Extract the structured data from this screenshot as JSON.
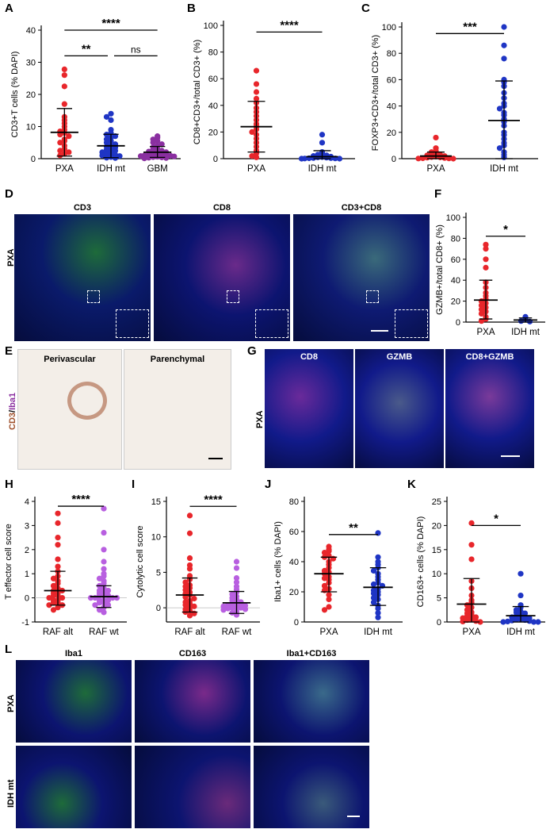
{
  "panel_letters": [
    "A",
    "B",
    "C",
    "D",
    "E",
    "F",
    "G",
    "H",
    "I",
    "J",
    "K",
    "L"
  ],
  "colors": {
    "red": "#e8262b",
    "blue": "#1f35c4",
    "purple": "#8a2fa0",
    "violet": "#b85fe0"
  },
  "micro": {
    "D": {
      "row_label": "PXA",
      "labels": [
        "CD3",
        "CD8",
        "CD3+CD8"
      ]
    },
    "E": {
      "labels": [
        "Perivascular",
        "Parenchymal"
      ],
      "side_label_a": "CD3",
      "side_label_sep": "/",
      "side_label_b": "Iba1"
    },
    "G": {
      "row_label": "PXA",
      "labels": [
        "CD8",
        "GZMB",
        "CD8+GZMB"
      ]
    },
    "L": {
      "row_labels": [
        "PXA",
        "IDH mt"
      ],
      "labels": [
        "Iba1",
        "CD163",
        "Iba1+CD163"
      ]
    }
  },
  "chart_data": [
    {
      "id": "A",
      "type": "scatter",
      "ylabel": "CD3+T cells (% DAPI)",
      "ylim": [
        0,
        40
      ],
      "yticks": [
        0,
        10,
        20,
        30,
        40
      ],
      "categories": [
        "PXA",
        "IDH mt",
        "GBM"
      ],
      "series": [
        {
          "category": "PXA",
          "color": "#e8262b",
          "mean": 8.2,
          "sd_low": 0.8,
          "sd_high": 15.6,
          "values": [
            27.8,
            26,
            22.5,
            17,
            13,
            12,
            11,
            10,
            9,
            8.5,
            8,
            7.5,
            7,
            6,
            5.5,
            5,
            4,
            3,
            2.5,
            2,
            1.5,
            1
          ]
        },
        {
          "category": "IDH mt",
          "color": "#1f35c4",
          "mean": 4,
          "sd_low": 0.3,
          "sd_high": 7.6,
          "values": [
            14,
            13,
            12,
            9,
            8,
            7.5,
            7,
            6.5,
            6,
            5.5,
            5,
            4.5,
            4,
            3.8,
            3.5,
            3,
            2.8,
            2.5,
            2,
            1.8,
            1.5,
            1.2,
            1,
            0.8,
            0.5,
            0.3,
            0.2
          ]
        },
        {
          "category": "GBM",
          "color": "#8a2fa0",
          "mean": 2,
          "sd_low": 0.4,
          "sd_high": 3.8,
          "values": [
            7,
            6.5,
            6,
            5.5,
            5,
            4.5,
            4,
            3.5,
            3,
            2.8,
            2.5,
            2.2,
            2,
            1.8,
            1.6,
            1.5,
            1.3,
            1.2,
            1,
            0.9,
            0.8,
            0.7,
            0.6,
            0.5,
            0.4,
            0.3,
            0.2,
            0.1
          ]
        }
      ],
      "significance": [
        {
          "from": 0,
          "to": 2,
          "label": "****",
          "y": 40
        },
        {
          "from": 0,
          "to": 1,
          "label": "**",
          "y": 32
        },
        {
          "from": 1,
          "to": 2,
          "label": "ns",
          "y": 32
        }
      ]
    },
    {
      "id": "B",
      "type": "scatter",
      "ylabel": "CD8+CD3+/total CD3+ (%)",
      "ylim": [
        0,
        100
      ],
      "yticks": [
        0,
        20,
        40,
        60,
        80,
        100
      ],
      "categories": [
        "PXA",
        "IDH mt"
      ],
      "series": [
        {
          "category": "PXA",
          "color": "#e8262b",
          "mean": 24,
          "sd_low": 5,
          "sd_high": 43,
          "values": [
            66,
            56,
            50,
            45,
            42,
            38,
            35,
            32,
            29,
            26,
            24,
            22,
            20,
            18,
            15,
            12,
            9,
            6,
            4,
            2,
            1
          ]
        },
        {
          "category": "IDH mt",
          "color": "#1f35c4",
          "mean": 1.5,
          "sd_low": 0,
          "sd_high": 6,
          "values": [
            18,
            12,
            5,
            4,
            3,
            2.5,
            2,
            1.5,
            1.2,
            1,
            0.8,
            0.5,
            0.4,
            0.3,
            0.2,
            0.1,
            0,
            0
          ]
        }
      ],
      "significance": [
        {
          "from": 0,
          "to": 1,
          "label": "****",
          "y": 95
        }
      ]
    },
    {
      "id": "C",
      "type": "scatter",
      "ylabel": "FOXP3+CD3+/total CD3+ (%)",
      "ylim": [
        0,
        100
      ],
      "yticks": [
        0,
        20,
        40,
        60,
        80,
        100
      ],
      "categories": [
        "PXA",
        "IDH mt"
      ],
      "series": [
        {
          "category": "PXA",
          "color": "#e8262b",
          "mean": 2,
          "sd_low": 0,
          "sd_high": 5,
          "values": [
            16,
            8,
            6,
            5,
            4,
            3.5,
            3,
            2.5,
            2,
            1.5,
            1.2,
            1,
            0.8,
            0.5,
            0.3,
            0.2,
            0.1,
            0
          ]
        },
        {
          "category": "IDH mt",
          "color": "#1f35c4",
          "mean": 29,
          "sd_low": 0,
          "sd_high": 59,
          "values": [
            100,
            86,
            76,
            60,
            58,
            55,
            50,
            46,
            42,
            40,
            38,
            35,
            33,
            30,
            28,
            25,
            20,
            18,
            15,
            12,
            10,
            8,
            5,
            3,
            1
          ]
        }
      ],
      "significance": [
        {
          "from": 0,
          "to": 1,
          "label": "***",
          "y": 95
        }
      ]
    },
    {
      "id": "F",
      "type": "scatter",
      "ylabel": "GZMB+/total CD8+ (%)",
      "ylim": [
        0,
        100
      ],
      "yticks": [
        0,
        20,
        40,
        60,
        80,
        100
      ],
      "categories": [
        "PXA",
        "IDH mt"
      ],
      "series": [
        {
          "category": "PXA",
          "color": "#e8262b",
          "mean": 21,
          "sd_low": 3,
          "sd_high": 40,
          "values": [
            74,
            70,
            60,
            52,
            38,
            33,
            28,
            25,
            22,
            20,
            18,
            16,
            14,
            12,
            10,
            8,
            5,
            3,
            1
          ]
        },
        {
          "category": "IDH mt",
          "color": "#1f35c4",
          "mean": 2,
          "sd_low": 0,
          "sd_high": 4,
          "values": [
            5,
            3,
            1,
            0.5
          ]
        }
      ],
      "significance": [
        {
          "from": 0,
          "to": 1,
          "label": "*",
          "y": 82
        }
      ]
    },
    {
      "id": "H",
      "type": "scatter",
      "ylabel": "T effector cell score",
      "ylim": [
        -1,
        4
      ],
      "yticks": [
        -1,
        0,
        1,
        2,
        3,
        4
      ],
      "categories": [
        "RAF alt",
        "RAF wt"
      ],
      "series": [
        {
          "category": "RAF alt",
          "color": "#e8262b",
          "mean": 0.3,
          "sd_low": -0.3,
          "sd_high": 1.1,
          "values": [
            3.5,
            3.1,
            2.5,
            2.2,
            1.6,
            1.3,
            1.1,
            0.9,
            0.8,
            0.7,
            0.6,
            0.5,
            0.4,
            0.3,
            0.3,
            0.2,
            0.2,
            0.1,
            0.1,
            0,
            0,
            -0.1,
            -0.1,
            -0.2,
            -0.2,
            -0.3,
            -0.3,
            -0.4,
            -0.5
          ]
        },
        {
          "category": "RAF wt",
          "color": "#b85fe0",
          "mean": 0.05,
          "sd_low": -0.4,
          "sd_high": 0.5,
          "values": [
            3.7,
            2.7,
            2.0,
            1.5,
            1.2,
            1.0,
            0.9,
            0.8,
            0.7,
            0.6,
            0.5,
            0.4,
            0.3,
            0.3,
            0.2,
            0.2,
            0.1,
            0.1,
            0.1,
            0,
            0,
            0,
            0,
            -0.1,
            -0.1,
            -0.1,
            -0.2,
            -0.2,
            -0.3,
            -0.3,
            -0.4,
            -0.5,
            -0.6
          ]
        }
      ],
      "significance": [
        {
          "from": 0,
          "to": 1,
          "label": "****",
          "y": 3.8
        }
      ]
    },
    {
      "id": "I",
      "type": "scatter",
      "ylabel": "Cytolytic cell score",
      "ylim": [
        -2,
        15
      ],
      "yticks": [
        0,
        5,
        10,
        15
      ],
      "categories": [
        "RAF alt",
        "RAF wt"
      ],
      "series": [
        {
          "category": "RAF alt",
          "color": "#e8262b",
          "mean": 1.8,
          "sd_low": -0.6,
          "sd_high": 4.2,
          "values": [
            13,
            10.5,
            7,
            6,
            5.5,
            4.5,
            4,
            3.6,
            3.2,
            3,
            2.8,
            2.5,
            2.2,
            2,
            1.8,
            1.5,
            1.3,
            1,
            0.8,
            0.6,
            0.4,
            0.2,
            0,
            -0.2,
            -0.4,
            -0.6,
            -0.8,
            -1.1
          ]
        },
        {
          "category": "RAF wt",
          "color": "#b85fe0",
          "mean": 0.7,
          "sd_low": -0.8,
          "sd_high": 2.3,
          "values": [
            6.5,
            5.6,
            4.2,
            3.6,
            3,
            2.6,
            2.2,
            1.9,
            1.6,
            1.4,
            1.2,
            1,
            0.8,
            0.7,
            0.6,
            0.5,
            0.4,
            0.3,
            0.2,
            0.1,
            0,
            0,
            -0.1,
            -0.2,
            -0.3,
            -0.5,
            -0.7,
            -1
          ]
        }
      ],
      "significance": [
        {
          "from": 0,
          "to": 1,
          "label": "****",
          "y": 14.3
        }
      ]
    },
    {
      "id": "J",
      "type": "scatter",
      "ylabel": "Iba1+ cells (% DAPI)",
      "ylim": [
        0,
        80
      ],
      "yticks": [
        0,
        20,
        40,
        60,
        80
      ],
      "categories": [
        "PXA",
        "IDH mt"
      ],
      "series": [
        {
          "category": "PXA",
          "color": "#e8262b",
          "mean": 32,
          "sd_low": 20,
          "sd_high": 43,
          "values": [
            50,
            48,
            47,
            46,
            44,
            43,
            42,
            40,
            38,
            36,
            34,
            33,
            32,
            30,
            29,
            28,
            26,
            24,
            22,
            21,
            18,
            15,
            10,
            8
          ]
        },
        {
          "category": "IDH mt",
          "color": "#1f35c4",
          "mean": 23,
          "sd_low": 11,
          "sd_high": 36,
          "values": [
            59,
            43,
            40,
            38,
            36,
            34,
            32,
            30,
            28,
            26,
            25,
            24,
            22,
            21,
            20,
            19,
            18,
            16,
            15,
            13,
            11,
            9,
            6,
            3
          ]
        }
      ],
      "significance": [
        {
          "from": 0,
          "to": 1,
          "label": "**",
          "y": 58
        }
      ]
    },
    {
      "id": "K",
      "type": "scatter",
      "ylabel": "CD163+ cells (% DAPI)",
      "ylim": [
        0,
        25
      ],
      "yticks": [
        0,
        5,
        10,
        15,
        20,
        25
      ],
      "categories": [
        "PXA",
        "IDH mt"
      ],
      "series": [
        {
          "category": "PXA",
          "color": "#e8262b",
          "mean": 3.7,
          "sd_low": 0,
          "sd_high": 9,
          "values": [
            20.5,
            16,
            13,
            8.5,
            7,
            5.5,
            4.5,
            4,
            3.5,
            3,
            2.5,
            2,
            1.8,
            1.5,
            1.2,
            1,
            0.8,
            0.6,
            0.4,
            0.2,
            0.1,
            0
          ]
        },
        {
          "category": "IDH mt",
          "color": "#1f35c4",
          "mean": 1.3,
          "sd_low": 0,
          "sd_high": 3.2,
          "values": [
            10,
            5.5,
            3.5,
            3,
            2.5,
            2.2,
            2,
            1.8,
            1.5,
            1.3,
            1.1,
            1,
            0.8,
            0.6,
            0.5,
            0.4,
            0.3,
            0.2,
            0.1,
            0,
            0,
            0
          ]
        }
      ],
      "significance": [
        {
          "from": 0,
          "to": 1,
          "label": "*",
          "y": 20
        }
      ]
    }
  ]
}
